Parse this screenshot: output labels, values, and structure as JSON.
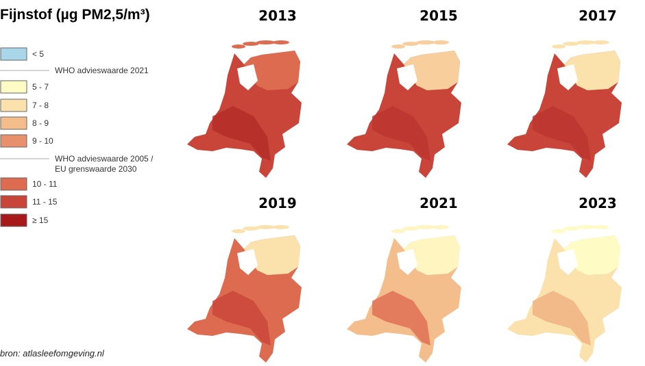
{
  "title": "Fijnstof (µg PM2,5/m³)",
  "legend": [
    {
      "label": "< 5",
      "color": "#a9d6e8"
    },
    {
      "line": [
        "WHO advieswaarde 2021"
      ]
    },
    {
      "label": "5 - 7",
      "color": "#fffbc4"
    },
    {
      "label": "7 - 8",
      "color": "#fbe2ad"
    },
    {
      "label": "8 - 9",
      "color": "#f4bd8c"
    },
    {
      "label": "9 - 10",
      "color": "#e8906c"
    },
    {
      "line": [
        "WHO advieswaarde 2005 /",
        "EU grenswaarde 2030"
      ]
    },
    {
      "label": "10 - 11",
      "color": "#dd6b50"
    },
    {
      "label": "11 - 15",
      "color": "#c9453a"
    },
    {
      "label": "≥ 15",
      "color": "#a8191b"
    }
  ],
  "maps": [
    {
      "year": "2013",
      "fill": "#c9453a",
      "north": "#dd6b50",
      "hotspot": "#b32a27"
    },
    {
      "year": "2015",
      "fill": "#c9453a",
      "north": "#f7ce9c",
      "hotspot": "#bb3530"
    },
    {
      "year": "2017",
      "fill": "#c9453a",
      "north": "#fbe2ad",
      "hotspot": "#bb3530"
    },
    {
      "year": "2019",
      "fill": "#dd6b50",
      "north": "#fbe2ad",
      "hotspot": "#c9453a"
    },
    {
      "year": "2021",
      "fill": "#f4bd8c",
      "north": "#fff5c0",
      "hotspot": "#dd6b50"
    },
    {
      "year": "2023",
      "fill": "#fbe2ad",
      "north": "#fffbc4",
      "hotspot": "#f0b080"
    }
  ],
  "source": "bron: atlasleefomgeving.nl"
}
